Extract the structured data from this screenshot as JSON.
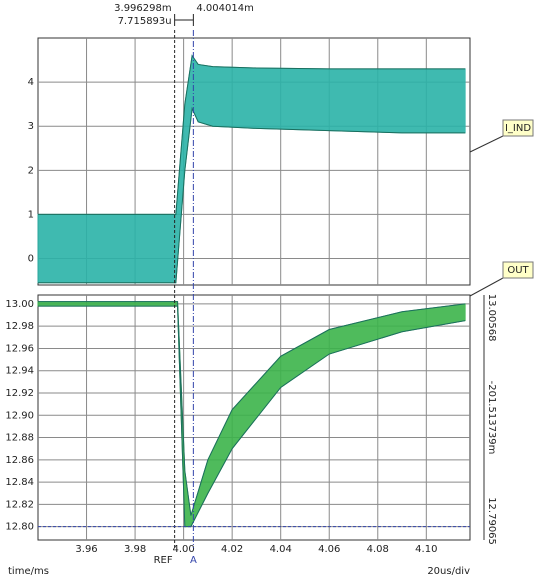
{
  "chart_data": [
    {
      "type": "band",
      "ylim": [
        -0.6,
        5.0
      ],
      "yticks": [
        0,
        1,
        2,
        3,
        4
      ],
      "xlim": [
        3.94,
        4.118
      ],
      "xticks": [
        3.96,
        3.98,
        {
          "value": 4.0,
          "label": "4.00"
        },
        4.02,
        4.04,
        4.06,
        4.08,
        {
          "value": 4.1,
          "label": "4.10"
        }
      ],
      "grid": true,
      "series": [
        {
          "name": "I_IND",
          "color": "#2bb3a8",
          "x": [
            3.94,
            3.9968,
            4.0005,
            4.0035,
            4.006,
            4.012,
            4.03,
            4.06,
            4.09,
            4.116
          ],
          "values": [
            1.0,
            1.0,
            3.5,
            4.6,
            4.4,
            4.35,
            4.32,
            4.3,
            4.3,
            4.3
          ],
          "lower": [
            -0.55,
            -0.55,
            2.0,
            3.4,
            3.1,
            3.0,
            2.95,
            2.9,
            2.85,
            2.85
          ]
        }
      ]
    },
    {
      "type": "band",
      "ylim": [
        12.788,
        13.008
      ],
      "yticks": [
        {
          "value": 12.8,
          "label": "12.80"
        },
        12.82,
        12.84,
        12.86,
        12.88,
        {
          "value": 12.9,
          "label": "12.90"
        },
        12.92,
        12.94,
        12.96,
        12.98,
        {
          "value": 13.0,
          "label": "13.00"
        }
      ],
      "xlim": [
        3.94,
        4.118
      ],
      "xticks": [
        3.96,
        3.98,
        {
          "value": 4.0,
          "label": "4.00"
        },
        4.02,
        4.04,
        4.06,
        4.08,
        {
          "value": 4.1,
          "label": "4.10"
        }
      ],
      "grid": true,
      "series": [
        {
          "name": "OUT",
          "color": "#3cb44b",
          "x": [
            3.94,
            3.9975,
            4.0005,
            4.003,
            4.01,
            4.02,
            4.04,
            4.06,
            4.09,
            4.116
          ],
          "values": [
            13.002,
            13.002,
            12.85,
            12.81,
            12.86,
            12.905,
            12.953,
            12.977,
            12.993,
            13.0
          ],
          "lower": [
            12.998,
            12.998,
            12.8,
            12.8,
            12.83,
            12.87,
            12.925,
            12.955,
            12.975,
            12.985
          ]
        }
      ],
      "readouts": [
        {
          "value": 13.00568,
          "label": "13.00568"
        },
        {
          "value": -0.201513739,
          "label": "-201.513739m"
        },
        {
          "value": 12.79065,
          "label": "12.79065"
        }
      ]
    }
  ],
  "cursors": {
    "ref": {
      "value": 3.996298,
      "label": "3.996298m",
      "name": "REF"
    },
    "a": {
      "value": 4.004014,
      "label": "4.004014m",
      "name": "A",
      "y": 12.8
    },
    "delta": {
      "value": 0.007715893,
      "label": "7.715893u"
    }
  },
  "x_label": "time/ms",
  "x_scale": "20us/div"
}
